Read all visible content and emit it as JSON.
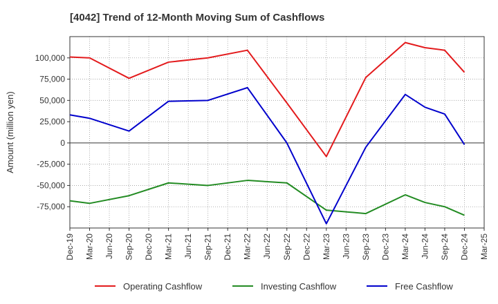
{
  "chart_data": {
    "type": "line",
    "title": "[4042]  Trend of 12-Month Moving Sum of Cashflows",
    "ylabel": "Amount (million yen)",
    "xlabel": "",
    "x_ticks": [
      "Dec-19",
      "Mar-20",
      "Jun-20",
      "Sep-20",
      "Dec-20",
      "Mar-21",
      "Jun-21",
      "Sep-21",
      "Dec-21",
      "Mar-22",
      "Jun-22",
      "Sep-22",
      "Dec-22",
      "Mar-23",
      "Jun-23",
      "Sep-23",
      "Dec-23",
      "Mar-24",
      "Jun-24",
      "Sep-24",
      "Dec-24",
      "Mar-25"
    ],
    "y_ticks": [
      100000,
      75000,
      50000,
      25000,
      0,
      -25000,
      -50000,
      -75000
    ],
    "y_tick_labels": [
      "100,000",
      "75,000",
      "50,000",
      "25,000",
      "0",
      "-25,000",
      "-50,000",
      "-75,000"
    ],
    "ylim": [
      -100000,
      125000
    ],
    "grid": true,
    "legend_position": "bottom",
    "x": [
      "Dec-19",
      "Mar-20",
      "Sep-20",
      "Mar-21",
      "Sep-21",
      "Mar-22",
      "Sep-22",
      "Mar-23",
      "Sep-23",
      "Mar-24",
      "Jun-24",
      "Sep-24",
      "Dec-24"
    ],
    "series": [
      {
        "name": "Operating Cashflow",
        "color": "#e31a1c",
        "values": [
          101000,
          100000,
          76000,
          95000,
          100000,
          109000,
          47000,
          -16000,
          77000,
          118000,
          112000,
          109000,
          83000
        ]
      },
      {
        "name": "Investing Cashflow",
        "color": "#228b22",
        "values": [
          -68000,
          -71000,
          -62000,
          -47000,
          -50000,
          -44000,
          -47000,
          -79000,
          -83000,
          -61000,
          -70000,
          -75000,
          -85000
        ]
      },
      {
        "name": "Free Cashflow",
        "color": "#0000cc",
        "values": [
          33000,
          29000,
          14000,
          49000,
          50000,
          65000,
          0,
          -95000,
          -5000,
          57000,
          42000,
          34000,
          -2000
        ]
      }
    ]
  }
}
